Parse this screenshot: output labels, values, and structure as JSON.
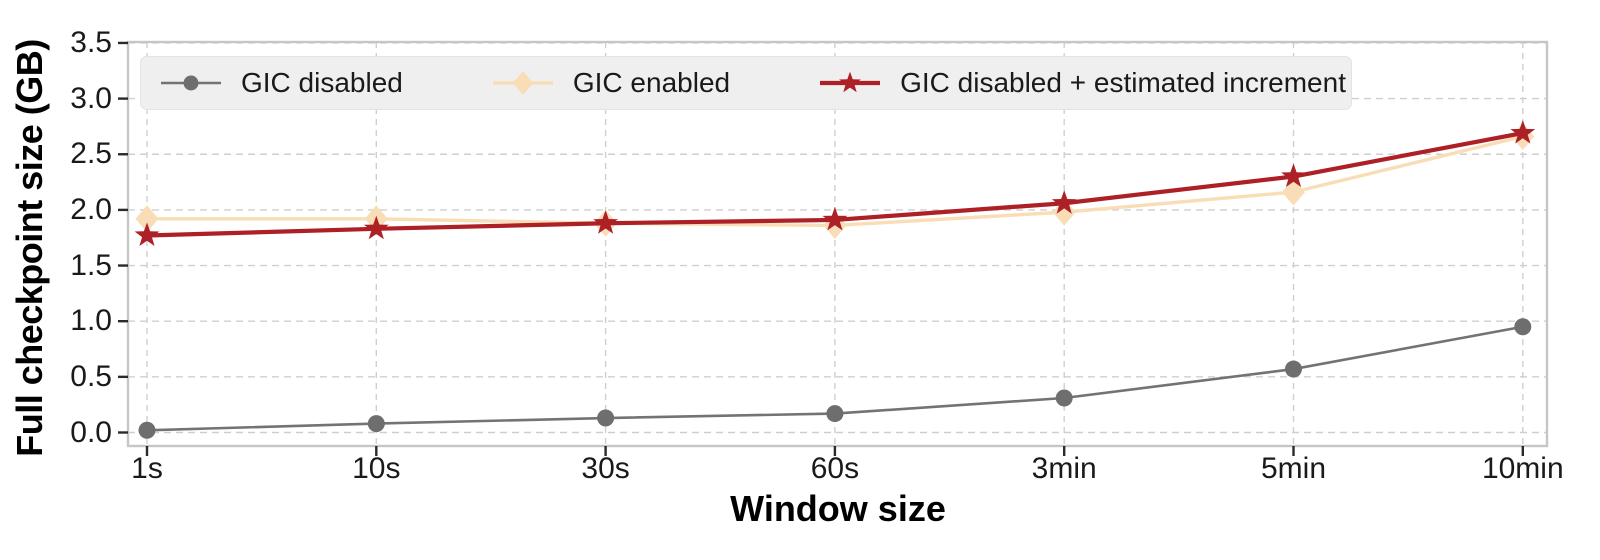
{
  "chart_data": {
    "type": "line",
    "title": "",
    "xlabel": "Window size",
    "ylabel": "Full checkpoint size (GB)",
    "categories": [
      "1s",
      "10s",
      "30s",
      "60s",
      "3min",
      "5min",
      "10min"
    ],
    "ytick_labels": [
      "0.0",
      "0.5",
      "1.0",
      "1.5",
      "2.0",
      "2.5",
      "3.0",
      "3.5"
    ],
    "ylim": [
      -0.12,
      3.52
    ],
    "grid": "dashed",
    "legend_position": "top-inside",
    "series": [
      {
        "name": "GIC disabled",
        "marker": "circle",
        "color": "#737373",
        "marker_color": "#6e6e6e",
        "values": [
          0.02,
          0.08,
          0.13,
          0.17,
          0.31,
          0.57,
          0.95
        ]
      },
      {
        "name": "GIC enabled",
        "marker": "diamond",
        "color": "#f9ddb6",
        "marker_color": "#f9ddb6",
        "values": [
          1.92,
          1.92,
          1.88,
          1.86,
          1.98,
          2.16,
          2.66
        ]
      },
      {
        "name": "GIC disabled + estimated increment",
        "marker": "star",
        "color": "#ac2026",
        "marker_color": "#ac2026",
        "values": [
          1.77,
          1.83,
          1.88,
          1.91,
          2.06,
          2.3,
          2.69
        ]
      }
    ],
    "colors": {
      "grid": "#cfcfcf",
      "axis_border": "#c6c6c6",
      "tick": "#2a2a2a",
      "text": "#1a1a1a",
      "legend_bg": "#efefef",
      "legend_border": "#e3e3e3"
    }
  }
}
